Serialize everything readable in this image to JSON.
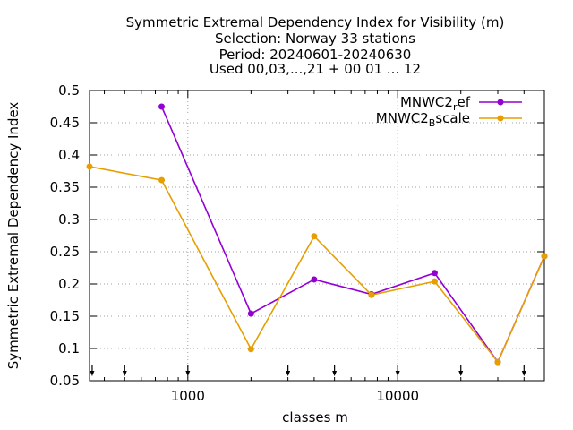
{
  "chart_data": {
    "type": "line",
    "title_lines": [
      "Symmetric Extremal Dependency Index  for Visibility (m)",
      "Selection: Norway     33 stations",
      "Period: 20240601-20240630",
      "Used 00,03,...,21 + 00 01 ... 12"
    ],
    "xlabel": "classes m",
    "ylabel": "Symmetric Extremal Dependency Index",
    "x_scale": "log",
    "xlim": [
      340,
      50000
    ],
    "ylim": [
      0.05,
      0.5
    ],
    "grid": true,
    "legend_position": "top-right",
    "x_tick_values": [
      1000,
      10000
    ],
    "x_tick_labels": [
      "1000",
      "10000"
    ],
    "y_ticks": [
      0.05,
      0.1,
      0.15,
      0.2,
      0.25,
      0.3,
      0.35,
      0.4,
      0.45,
      0.5
    ],
    "y_tick_labels": [
      "0.05",
      "0.1",
      "0.15",
      "0.2",
      "0.25",
      "0.3",
      "0.35",
      "0.4",
      "0.45",
      "0.5"
    ],
    "threshold_markers_x": [
      350,
      500,
      1000,
      3000,
      5000,
      10000,
      20000,
      40000
    ],
    "series": [
      {
        "name_main": "MNWC2",
        "name_sub": "r",
        "name_rest": "ef",
        "color": "#9400d3",
        "x": [
          750,
          2000,
          4000,
          7500,
          15000,
          30000,
          50000
        ],
        "y": [
          0.475,
          0.154,
          0.207,
          0.184,
          0.217,
          0.079,
          0.243
        ]
      },
      {
        "name_main": "MNWC2",
        "name_sub": "B",
        "name_rest": "scale",
        "color": "#e69f00",
        "x": [
          340,
          750,
          2000,
          4000,
          7500,
          15000,
          30000,
          50000
        ],
        "y": [
          0.382,
          0.361,
          0.099,
          0.274,
          0.183,
          0.204,
          0.079,
          0.243
        ]
      }
    ]
  }
}
